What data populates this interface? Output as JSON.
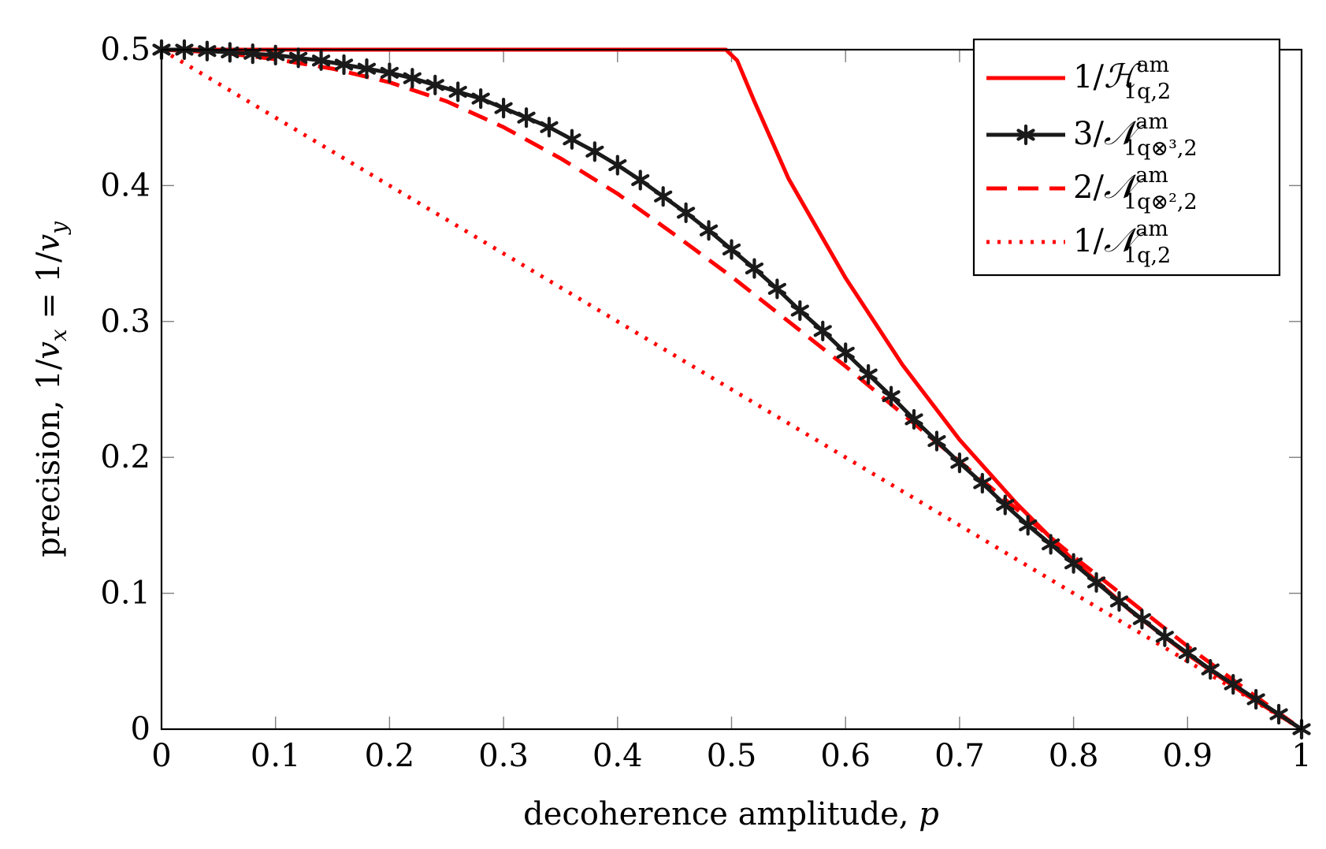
{
  "chart_data": {
    "type": "line",
    "xlabel": "decoherence amplitude, p",
    "ylabel": "precision, 1/v",
    "ylabel_parts": {
      "prefix": "precision, 1/",
      "var1": "v",
      "sub1": "x",
      "mid": " = 1/",
      "var2": "v",
      "sub2": "y"
    },
    "xlabel_parts": {
      "prefix": "decoherence amplitude, ",
      "var": "p"
    },
    "xlim": [
      0,
      1
    ],
    "ylim": [
      0,
      0.5
    ],
    "xticks": [
      "0",
      "0.1",
      "0.2",
      "0.3",
      "0.4",
      "0.5",
      "0.6",
      "0.7",
      "0.8",
      "0.9",
      "1"
    ],
    "yticks": [
      "0",
      "0.1",
      "0.2",
      "0.3",
      "0.4",
      "0.5"
    ],
    "xtick_values": [
      0,
      0.1,
      0.2,
      0.3,
      0.4,
      0.5,
      0.6,
      0.7,
      0.8,
      0.9,
      1
    ],
    "ytick_values": [
      0,
      0.1,
      0.2,
      0.3,
      0.4,
      0.5
    ],
    "legend_position": "top-right",
    "colors": {
      "red": "#ff0000",
      "black": "#1a1a1a"
    },
    "series": [
      {
        "name": "1/H^am_{1q,2}",
        "legend": {
          "num": "1/",
          "sym": "ℋ",
          "sup": "am",
          "sub": "1q,2"
        },
        "style": "solid",
        "color": "#ff0000",
        "marker": "none",
        "x": [
          0,
          0.1,
          0.2,
          0.3,
          0.4,
          0.495,
          0.505,
          0.52,
          0.55,
          0.6,
          0.65,
          0.7,
          0.75,
          0.8,
          0.85,
          0.9,
          0.95,
          1.0
        ],
        "values": [
          0.5,
          0.5,
          0.5,
          0.5,
          0.5,
          0.5,
          0.492,
          0.462,
          0.405,
          0.332,
          0.268,
          0.213,
          0.166,
          0.124,
          0.087,
          0.055,
          0.026,
          0.0
        ]
      },
      {
        "name": "3/N^am_{1q⊗3,2}",
        "legend": {
          "num": "3/",
          "sym": "𝒩",
          "sup": "am",
          "sub": "1q⊗³,2"
        },
        "style": "solid",
        "color": "#1a1a1a",
        "marker": "star",
        "x": [
          0,
          0.02,
          0.04,
          0.06,
          0.08,
          0.1,
          0.12,
          0.14,
          0.16,
          0.18,
          0.2,
          0.22,
          0.24,
          0.26,
          0.28,
          0.3,
          0.32,
          0.34,
          0.36,
          0.38,
          0.4,
          0.42,
          0.44,
          0.46,
          0.48,
          0.5,
          0.52,
          0.54,
          0.56,
          0.58,
          0.6,
          0.62,
          0.64,
          0.66,
          0.68,
          0.7,
          0.72,
          0.74,
          0.76,
          0.78,
          0.8,
          0.82,
          0.84,
          0.86,
          0.88,
          0.9,
          0.92,
          0.94,
          0.96,
          0.98,
          1.0
        ],
        "values": [
          0.5,
          0.5,
          0.499,
          0.498,
          0.497,
          0.496,
          0.494,
          0.492,
          0.489,
          0.486,
          0.483,
          0.479,
          0.474,
          0.469,
          0.464,
          0.457,
          0.45,
          0.443,
          0.434,
          0.425,
          0.415,
          0.404,
          0.392,
          0.38,
          0.367,
          0.353,
          0.339,
          0.324,
          0.308,
          0.293,
          0.277,
          0.261,
          0.245,
          0.228,
          0.212,
          0.196,
          0.181,
          0.165,
          0.15,
          0.136,
          0.122,
          0.108,
          0.094,
          0.081,
          0.068,
          0.056,
          0.044,
          0.033,
          0.022,
          0.011,
          0.0
        ]
      },
      {
        "name": "2/N^am_{1q⊗2,2}",
        "legend": {
          "num": "2/",
          "sym": "𝒩",
          "sup": "am",
          "sub": "1q⊗²,2"
        },
        "style": "dashed",
        "color": "#ff0000",
        "marker": "none",
        "x": [
          0,
          0.05,
          0.1,
          0.15,
          0.2,
          0.25,
          0.3,
          0.35,
          0.4,
          0.45,
          0.5,
          0.55,
          0.6,
          0.65,
          0.7,
          0.75,
          0.8,
          0.85,
          0.9,
          0.95,
          1.0
        ],
        "values": [
          0.5,
          0.498,
          0.493,
          0.486,
          0.476,
          0.462,
          0.443,
          0.42,
          0.394,
          0.364,
          0.333,
          0.3,
          0.267,
          0.232,
          0.197,
          0.162,
          0.127,
          0.094,
          0.061,
          0.03,
          0.0
        ]
      },
      {
        "name": "1/N^am_{1q,2}",
        "legend": {
          "num": "1/",
          "sym": "𝒩",
          "sup": "am",
          "sub": "1q,2"
        },
        "style": "dotted",
        "color": "#ff0000",
        "marker": "none",
        "x": [
          0,
          0.1,
          0.2,
          0.3,
          0.4,
          0.5,
          0.6,
          0.7,
          0.8,
          0.9,
          1.0
        ],
        "values": [
          0.5,
          0.45,
          0.4,
          0.35,
          0.3,
          0.25,
          0.2,
          0.15,
          0.1,
          0.05,
          0.0
        ]
      }
    ]
  }
}
